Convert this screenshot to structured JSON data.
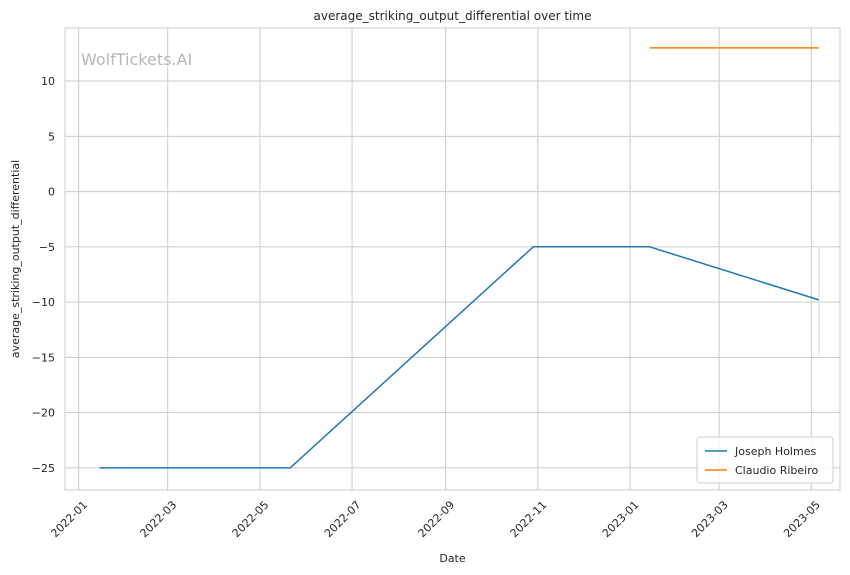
{
  "chart_data": {
    "type": "line",
    "title": "average_striking_output_differential over time",
    "xlabel": "Date",
    "ylabel": "average_striking_output_differential",
    "watermark": "WolfTickets.AI",
    "x_ticks": [
      "2022-01",
      "2022-03",
      "2022-05",
      "2022-07",
      "2022-09",
      "2022-11",
      "2023-01",
      "2023-03",
      "2023-05"
    ],
    "y_ticks": [
      10,
      5,
      0,
      -5,
      -10,
      -15,
      -20,
      -25
    ],
    "y_tick_labels": [
      "10",
      "5",
      "0",
      "−5",
      "−10",
      "−15",
      "−20",
      "−25"
    ],
    "xlim": [
      "2021-12-23",
      "2023-05-20"
    ],
    "ylim": [
      -27,
      14.8
    ],
    "grid": true,
    "legend_position": "lower-right",
    "series": [
      {
        "name": "Joseph Holmes",
        "color": "#1f77b4",
        "points": [
          {
            "x": "2022-01-15",
            "y": -25
          },
          {
            "x": "2022-05-21",
            "y": -25
          },
          {
            "x": "2022-10-29",
            "y": -5
          },
          {
            "x": "2023-01-14",
            "y": -5
          },
          {
            "x": "2023-05-06",
            "y": -9.8
          }
        ]
      },
      {
        "name": "Claudio Ribeiro",
        "color": "#ff7f0e",
        "points": [
          {
            "x": "2023-01-14",
            "y": 13
          },
          {
            "x": "2023-05-06",
            "y": 13
          }
        ]
      }
    ],
    "error_bar": {
      "x": "2023-05-06",
      "low": -14.8,
      "high": -5.0,
      "color": "#c8dbe8"
    }
  }
}
